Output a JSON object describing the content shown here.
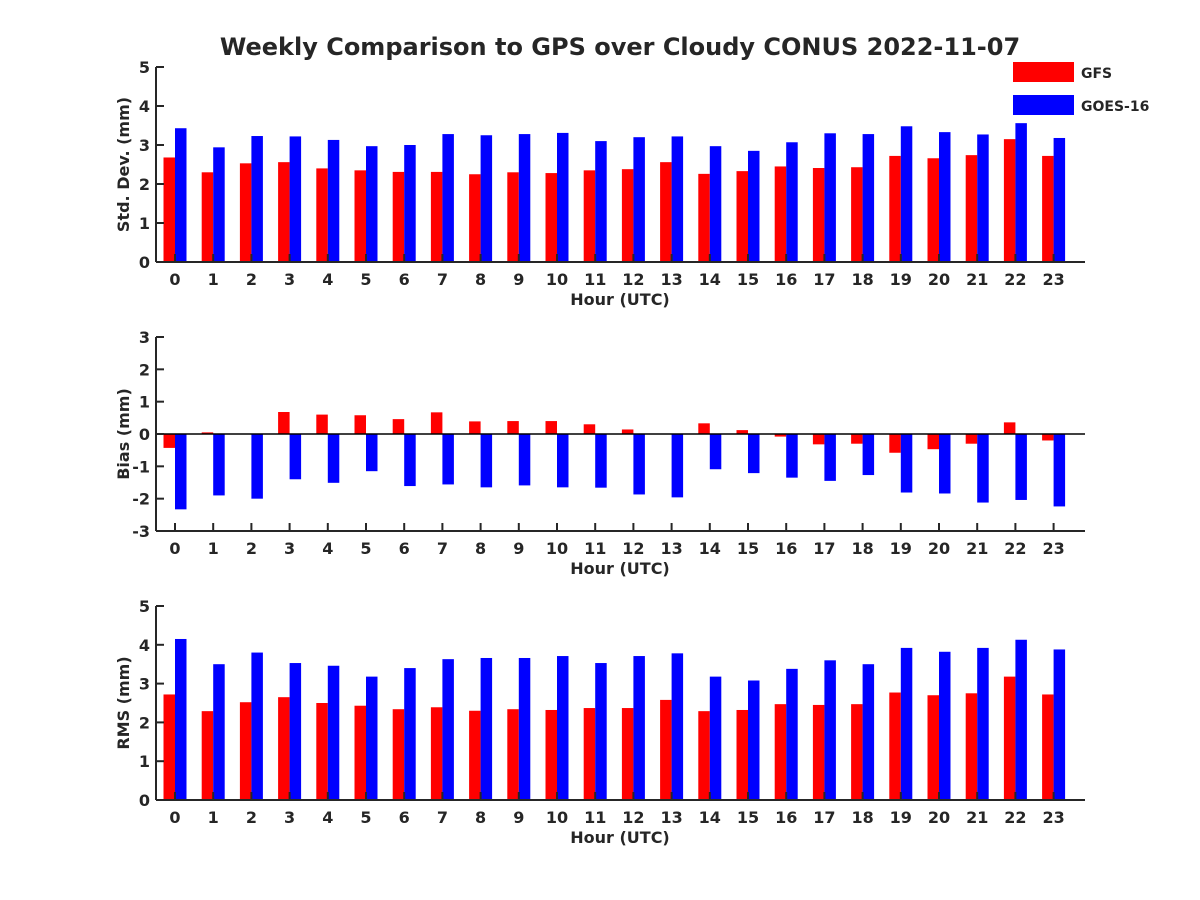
{
  "title": "Weekly Comparison to GPS over Cloudy CONUS 2022-11-07",
  "colors": {
    "GFS": "#ff0000",
    "GOES-16": "#0000ff"
  },
  "legend": {
    "placement": "top-right",
    "items": [
      "GFS",
      "GOES-16"
    ]
  },
  "chart_data": [
    {
      "type": "bar",
      "ylabel": "Std. Dev. (mm)",
      "xlabel": "Hour (UTC)",
      "ylim": [
        0,
        5
      ],
      "yticks": [
        0,
        1,
        2,
        3,
        4,
        5
      ],
      "categories": [
        "0",
        "1",
        "2",
        "3",
        "4",
        "5",
        "6",
        "7",
        "8",
        "9",
        "10",
        "11",
        "12",
        "13",
        "14",
        "15",
        "16",
        "17",
        "18",
        "19",
        "20",
        "21",
        "22",
        "23"
      ],
      "series": [
        {
          "name": "GFS",
          "values": [
            2.68,
            2.3,
            2.53,
            2.56,
            2.4,
            2.35,
            2.31,
            2.31,
            2.25,
            2.3,
            2.28,
            2.35,
            2.38,
            2.56,
            2.26,
            2.33,
            2.45,
            2.41,
            2.43,
            2.72,
            2.66,
            2.74,
            3.15,
            2.72
          ]
        },
        {
          "name": "GOES-16",
          "values": [
            3.43,
            2.94,
            3.23,
            3.22,
            3.13,
            2.97,
            3.0,
            3.28,
            3.25,
            3.28,
            3.31,
            3.1,
            3.2,
            3.22,
            2.97,
            2.85,
            3.07,
            3.3,
            3.28,
            3.48,
            3.33,
            3.27,
            3.56,
            3.18
          ]
        }
      ]
    },
    {
      "type": "bar",
      "ylabel": "Bias (mm)",
      "xlabel": "Hour (UTC)",
      "ylim": [
        -3,
        3
      ],
      "yticks": [
        -3,
        -2,
        -1,
        0,
        1,
        2,
        3
      ],
      "categories": [
        "0",
        "1",
        "2",
        "3",
        "4",
        "5",
        "6",
        "7",
        "8",
        "9",
        "10",
        "11",
        "12",
        "13",
        "14",
        "15",
        "16",
        "17",
        "18",
        "19",
        "20",
        "21",
        "22",
        "23"
      ],
      "series": [
        {
          "name": "GFS",
          "values": [
            -0.43,
            0.05,
            0.0,
            0.68,
            0.6,
            0.58,
            0.46,
            0.67,
            0.39,
            0.4,
            0.4,
            0.3,
            0.14,
            0.0,
            0.33,
            0.12,
            -0.08,
            -0.32,
            -0.3,
            -0.58,
            -0.47,
            -0.3,
            0.36,
            -0.2
          ]
        },
        {
          "name": "GOES-16",
          "values": [
            -2.33,
            -1.9,
            -2.0,
            -1.4,
            -1.51,
            -1.15,
            -1.61,
            -1.56,
            -1.65,
            -1.59,
            -1.65,
            -1.66,
            -1.87,
            -1.96,
            -1.09,
            -1.21,
            -1.35,
            -1.45,
            -1.27,
            -1.81,
            -1.84,
            -2.12,
            -2.04,
            -2.24
          ]
        }
      ]
    },
    {
      "type": "bar",
      "ylabel": "RMS (mm)",
      "xlabel": "Hour (UTC)",
      "ylim": [
        0,
        5
      ],
      "yticks": [
        0,
        1,
        2,
        3,
        4,
        5
      ],
      "categories": [
        "0",
        "1",
        "2",
        "3",
        "4",
        "5",
        "6",
        "7",
        "8",
        "9",
        "10",
        "11",
        "12",
        "13",
        "14",
        "15",
        "16",
        "17",
        "18",
        "19",
        "20",
        "21",
        "22",
        "23"
      ],
      "series": [
        {
          "name": "GFS",
          "values": [
            2.72,
            2.29,
            2.52,
            2.65,
            2.5,
            2.43,
            2.34,
            2.39,
            2.3,
            2.34,
            2.32,
            2.37,
            2.37,
            2.58,
            2.29,
            2.32,
            2.47,
            2.45,
            2.47,
            2.77,
            2.7,
            2.75,
            3.18,
            2.72
          ]
        },
        {
          "name": "GOES-16",
          "values": [
            4.15,
            3.5,
            3.8,
            3.53,
            3.46,
            3.18,
            3.4,
            3.63,
            3.66,
            3.66,
            3.71,
            3.53,
            3.71,
            3.78,
            3.18,
            3.08,
            3.38,
            3.6,
            3.5,
            3.92,
            3.82,
            3.92,
            4.13,
            3.88
          ]
        }
      ]
    }
  ]
}
